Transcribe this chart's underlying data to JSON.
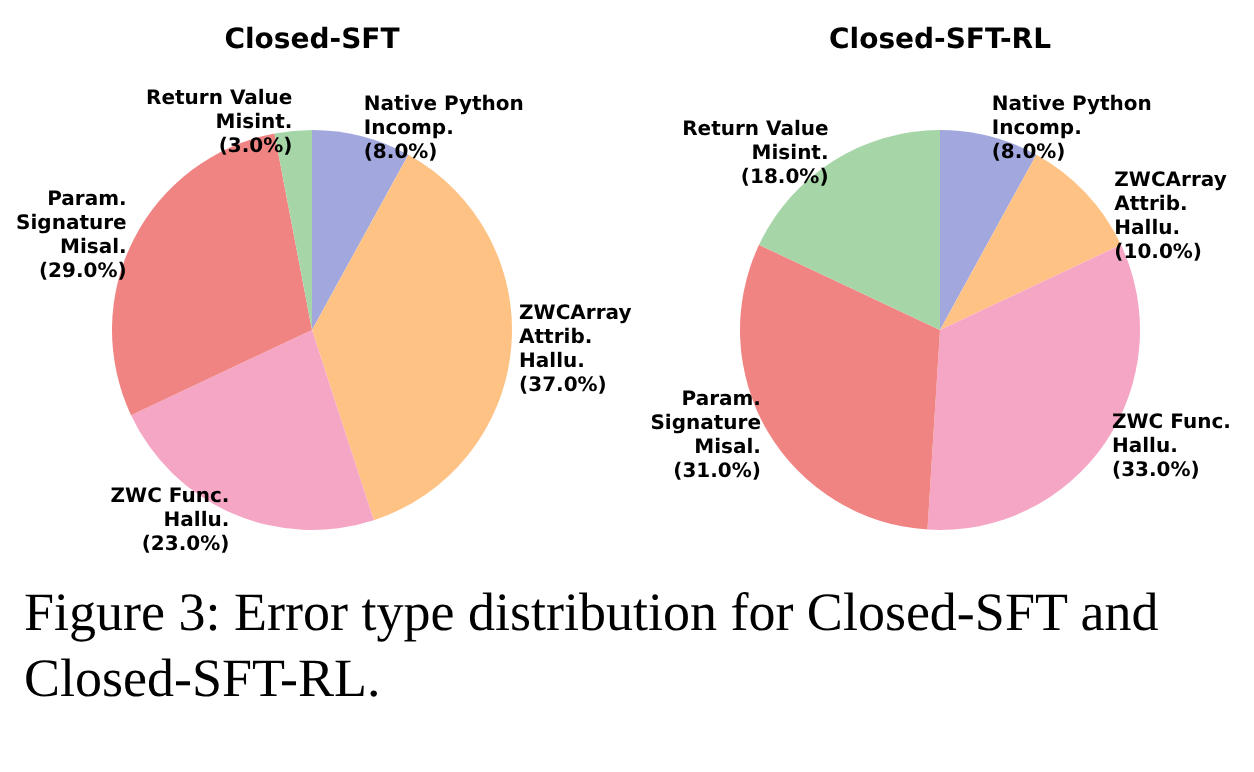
{
  "chart_data": [
    {
      "type": "pie",
      "title": "Closed-SFT",
      "categories": [
        "Native Python\nIncomp.",
        "ZWCArray\nAttrib.\nHallu.",
        "ZWC Func.\nHallu.",
        "Param.\nSignature\nMisal.",
        "Return Value\nMisint."
      ],
      "values": [
        8.0,
        37.0,
        23.0,
        29.0,
        3.0
      ],
      "value_labels": [
        "(8.0%)",
        "(37.0%)",
        "(23.0%)",
        "(29.0%)",
        "(3.0%)"
      ],
      "colors": [
        "#a2a8de",
        "#ffc285",
        "#f5a6c5",
        "#f08482",
        "#a6d6a8"
      ],
      "legend": false,
      "annotations": [
        "Figure 3: Error type distribution for Closed-SFT and Closed-SFT-RL."
      ]
    },
    {
      "type": "pie",
      "title": "Closed-SFT-RL",
      "categories": [
        "Native Python\nIncomp.",
        "ZWCArray\nAttrib.\nHallu.",
        "ZWC Func.\nHallu.",
        "Param.\nSignature\nMisal.",
        "Return Value\nMisint."
      ],
      "values": [
        8.0,
        10.0,
        33.0,
        31.0,
        18.0
      ],
      "value_labels": [
        "(8.0%)",
        "(10.0%)",
        "(33.0%)",
        "(31.0%)",
        "(18.0%)"
      ],
      "colors": [
        "#a2a8de",
        "#ffc285",
        "#f5a6c5",
        "#f08482",
        "#a6d6a8"
      ],
      "legend": false
    }
  ]
}
